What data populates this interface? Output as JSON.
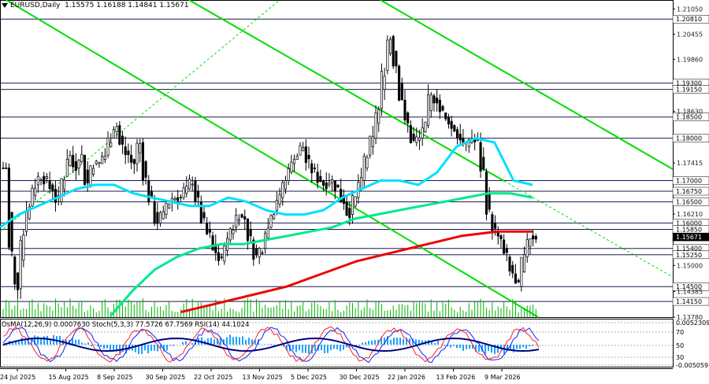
{
  "header": {
    "symbol": "EURUSD,Daily",
    "ohlc": "1.15575 1.16188 1.14841 1.15671",
    "indicators": "OsMA(12,26,9) 0.0007630   Stoch(5,3,3) 77.5726 67.7569   RSI(14) 44.1024"
  },
  "colors": {
    "background": "#ffffff",
    "candle": "#000000",
    "volume": "#00b400",
    "trend_line": "#00dd00",
    "ema_fast": "#00e0ff",
    "ema_mid": "#00e890",
    "ema_slow": "#ee0000",
    "level_line": "#1a1a4e",
    "osma": "#1aa3ff",
    "stoch_main": "#1020ff",
    "stoch_signal": "#ff2020",
    "rsi": "#000080"
  },
  "chart_data": {
    "type": "candlestick",
    "instrument": "EURUSD",
    "timeframe": "Daily",
    "ylim": [
      1.1378,
      1.2126
    ],
    "date_ticks": [
      "24 Jul 2025",
      "15 Aug 2025",
      "8 Sep 2025",
      "30 Sep 2025",
      "22 Oct 2025",
      "13 Nov 2025",
      "5 Dec 2025",
      "30 Dec 2025",
      "22 Jan 2026",
      "13 Feb 2026",
      "9 Mar 2026"
    ],
    "price_ticks": [
      "1.21050",
      "1.20455",
      "1.19860",
      "1.18630",
      "1.17415",
      "1.16210",
      "1.15000",
      "1.14385",
      "1.13780"
    ],
    "level_labels": [
      "1.20810",
      "1.19300",
      "1.19150",
      "1.18500",
      "1.18000",
      "1.17000",
      "1.16750",
      "1.16500",
      "1.16000",
      "1.15850",
      "1.15671",
      "1.15400",
      "1.15250",
      "1.14500",
      "1.14150"
    ],
    "current_price": "1.15671",
    "close_path": [
      1.173,
      1.152,
      1.1445,
      1.158,
      1.164,
      1.169,
      1.171,
      1.17,
      1.168,
      1.165,
      1.171,
      1.176,
      1.173,
      1.176,
      1.169,
      1.174,
      1.174,
      1.176,
      1.18,
      1.183,
      1.178,
      1.176,
      1.174,
      1.179,
      1.17,
      1.165,
      1.16,
      1.162,
      1.165,
      1.166,
      1.166,
      1.168,
      1.17,
      1.165,
      1.16,
      1.157,
      1.153,
      1.151,
      1.156,
      1.159,
      1.162,
      1.161,
      1.156,
      1.152,
      1.154,
      1.159,
      1.163,
      1.166,
      1.17,
      1.174,
      1.176,
      1.178,
      1.174,
      1.172,
      1.17,
      1.169,
      1.17,
      1.168,
      1.165,
      1.162,
      1.166,
      1.17,
      1.176,
      1.18,
      1.187,
      1.196,
      1.204,
      1.197,
      1.189,
      1.183,
      1.179,
      1.18,
      1.183,
      1.19,
      1.189,
      1.186,
      1.184,
      1.182,
      1.18,
      1.178,
      1.18,
      1.179,
      1.172,
      1.162,
      1.158,
      1.156,
      1.152,
      1.148,
      1.145,
      1.152,
      1.157,
      1.1567
    ],
    "series": [
      {
        "name": "EMA fast",
        "values": [
          1.159,
          1.162,
          1.164,
          1.166,
          1.168,
          1.169,
          1.169,
          1.167,
          1.166,
          1.165,
          1.164,
          1.164,
          1.166,
          1.165,
          1.163,
          1.162,
          1.162,
          1.163,
          1.166,
          1.168,
          1.17,
          1.17,
          1.169,
          1.172,
          1.178,
          1.18,
          1.179,
          1.17,
          1.169
        ]
      },
      {
        "name": "EMA mid",
        "values": [
          1.138,
          1.144,
          1.149,
          1.152,
          1.154,
          1.155,
          1.155,
          1.156,
          1.157,
          1.158,
          1.159,
          1.161,
          1.162,
          1.163,
          1.164,
          1.165,
          1.166,
          1.167,
          1.167,
          1.166
        ]
      },
      {
        "name": "EMA slow",
        "values": [
          1.139,
          1.141,
          1.143,
          1.145,
          1.148,
          1.151,
          1.153,
          1.155,
          1.157,
          1.158,
          1.158
        ]
      }
    ],
    "panel": {
      "levels": [
        "0.0052309",
        "70",
        "50",
        "30",
        "-0.0050597"
      ]
    }
  }
}
